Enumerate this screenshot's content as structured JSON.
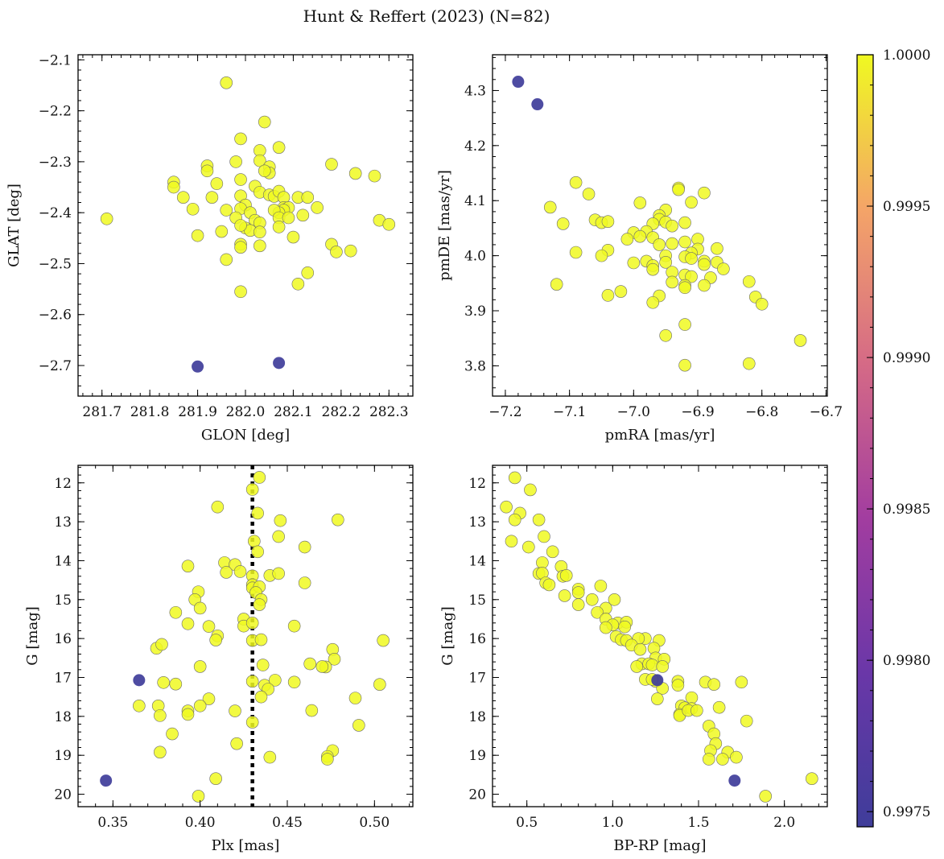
{
  "figure": {
    "suptitle": "Hunt & Reffert (2023) (N=82)"
  },
  "colors": {
    "member": "#f0f921",
    "outlier": "#3f3d9a"
  },
  "colorbar": {
    "min": 0.99745,
    "max": 1.0,
    "ticks": [
      0.9975,
      0.998,
      0.9985,
      0.999,
      0.9995,
      1.0
    ],
    "tick_labels": [
      "0.9975",
      "0.9980",
      "0.9985",
      "0.9990",
      "0.9995",
      "1.0000"
    ],
    "colormap": "plasma"
  },
  "chart_data": [
    {
      "id": "glon-glat",
      "type": "scatter",
      "xlabel": "GLON [deg]",
      "ylabel": "GLAT [deg]",
      "xlim": [
        281.65,
        282.35
      ],
      "ylim": [
        -2.76,
        -2.09
      ],
      "y_inverted": false,
      "xticks": [
        281.7,
        281.8,
        281.9,
        282.0,
        282.1,
        282.2,
        282.3
      ],
      "xtick_labels": [
        "281.7",
        "281.8",
        "281.9",
        "282.0",
        "282.1",
        "282.2",
        "282.3"
      ],
      "yticks": [
        -2.1,
        -2.2,
        -2.3,
        -2.4,
        -2.5,
        -2.6,
        -2.7
      ],
      "ytick_labels": [
        "−2.1",
        "−2.2",
        "−2.3",
        "−2.4",
        "−2.5",
        "−2.6",
        "−2.7"
      ],
      "members": [
        [
          281.96,
          -2.145
        ],
        [
          282.04,
          -2.222
        ],
        [
          281.99,
          -2.255
        ],
        [
          282.07,
          -2.272
        ],
        [
          282.03,
          -2.278
        ],
        [
          282.18,
          -2.305
        ],
        [
          282.23,
          -2.323
        ],
        [
          282.27,
          -2.328
        ],
        [
          281.92,
          -2.308
        ],
        [
          281.92,
          -2.318
        ],
        [
          281.98,
          -2.3
        ],
        [
          282.03,
          -2.298
        ],
        [
          282.05,
          -2.31
        ],
        [
          282.05,
          -2.322
        ],
        [
          282.04,
          -2.318
        ],
        [
          281.99,
          -2.335
        ],
        [
          281.85,
          -2.34
        ],
        [
          281.85,
          -2.35
        ],
        [
          281.87,
          -2.37
        ],
        [
          281.93,
          -2.37
        ],
        [
          281.94,
          -2.343
        ],
        [
          281.99,
          -2.367
        ],
        [
          282.02,
          -2.348
        ],
        [
          282.03,
          -2.36
        ],
        [
          282.05,
          -2.365
        ],
        [
          282.06,
          -2.368
        ],
        [
          282.07,
          -2.358
        ],
        [
          282.08,
          -2.37
        ],
        [
          282.11,
          -2.37
        ],
        [
          282.13,
          -2.37
        ],
        [
          282.0,
          -2.385
        ],
        [
          282.08,
          -2.39
        ],
        [
          282.09,
          -2.39
        ],
        [
          282.08,
          -2.395
        ],
        [
          282.07,
          -2.4
        ],
        [
          282.15,
          -2.39
        ],
        [
          282.06,
          -2.395
        ],
        [
          282.07,
          -2.41
        ],
        [
          282.12,
          -2.405
        ],
        [
          281.71,
          -2.412
        ],
        [
          281.89,
          -2.393
        ],
        [
          281.96,
          -2.395
        ],
        [
          281.99,
          -2.392
        ],
        [
          281.98,
          -2.41
        ],
        [
          282.01,
          -2.4
        ],
        [
          282.02,
          -2.415
        ],
        [
          282.03,
          -2.42
        ],
        [
          282.0,
          -2.43
        ],
        [
          282.01,
          -2.435
        ],
        [
          281.99,
          -2.425
        ],
        [
          282.09,
          -2.41
        ],
        [
          282.03,
          -2.438
        ],
        [
          282.07,
          -2.428
        ],
        [
          281.95,
          -2.437
        ],
        [
          281.9,
          -2.445
        ],
        [
          282.1,
          -2.448
        ],
        [
          281.99,
          -2.462
        ],
        [
          281.99,
          -2.468
        ],
        [
          282.03,
          -2.465
        ],
        [
          282.18,
          -2.462
        ],
        [
          282.19,
          -2.477
        ],
        [
          282.22,
          -2.475
        ],
        [
          282.28,
          -2.415
        ],
        [
          282.3,
          -2.423
        ],
        [
          281.96,
          -2.492
        ],
        [
          282.11,
          -2.54
        ],
        [
          282.13,
          -2.518
        ],
        [
          281.99,
          -2.555
        ]
      ],
      "outliers": [
        [
          281.9,
          -2.702
        ],
        [
          282.07,
          -2.695
        ]
      ]
    },
    {
      "id": "pmra-pmde",
      "type": "scatter",
      "xlabel": "pmRA [mas/yr]",
      "ylabel": "pmDE [mas/yr]",
      "xlim": [
        -7.22,
        -6.698
      ],
      "ylim": [
        3.745,
        4.365
      ],
      "y_inverted": false,
      "xticks": [
        -7.2,
        -7.1,
        -7.0,
        -6.9,
        -6.8,
        -6.7
      ],
      "xtick_labels": [
        "−7.2",
        "−7.1",
        "−7.0",
        "−6.9",
        "−6.8",
        "−6.7"
      ],
      "yticks": [
        3.8,
        3.9,
        4.0,
        4.1,
        4.2,
        4.3
      ],
      "ytick_labels": [
        "3.8",
        "3.9",
        "4.0",
        "4.1",
        "4.2",
        "4.3"
      ],
      "members": [
        [
          -7.09,
          4.133
        ],
        [
          -7.07,
          4.112
        ],
        [
          -6.89,
          4.114
        ],
        [
          -6.93,
          4.123
        ],
        [
          -6.93,
          4.12
        ],
        [
          -7.13,
          4.088
        ],
        [
          -6.99,
          4.096
        ],
        [
          -6.91,
          4.097
        ],
        [
          -6.95,
          4.083
        ],
        [
          -6.96,
          4.073
        ],
        [
          -6.96,
          4.066
        ],
        [
          -6.95,
          4.061
        ],
        [
          -7.11,
          4.058
        ],
        [
          -7.06,
          4.065
        ],
        [
          -7.05,
          4.06
        ],
        [
          -7.04,
          4.062
        ],
        [
          -6.92,
          4.06
        ],
        [
          -6.97,
          4.058
        ],
        [
          -6.94,
          4.054
        ],
        [
          -6.98,
          4.044
        ],
        [
          -7.0,
          4.042
        ],
        [
          -6.99,
          4.035
        ],
        [
          -6.97,
          4.033
        ],
        [
          -7.01,
          4.03
        ],
        [
          -6.9,
          4.03
        ],
        [
          -6.92,
          4.025
        ],
        [
          -6.94,
          4.022
        ],
        [
          -6.96,
          4.02
        ],
        [
          -6.87,
          4.013
        ],
        [
          -6.9,
          4.012
        ],
        [
          -6.91,
          4.005
        ],
        [
          -7.04,
          4.01
        ],
        [
          -7.09,
          4.006
        ],
        [
          -7.05,
          4.0
        ],
        [
          -6.95,
          4.0
        ],
        [
          -6.92,
          3.998
        ],
        [
          -6.91,
          3.995
        ],
        [
          -6.89,
          3.99
        ],
        [
          -6.87,
          3.988
        ],
        [
          -6.98,
          3.99
        ],
        [
          -6.95,
          3.988
        ],
        [
          -7.0,
          3.987
        ],
        [
          -6.89,
          3.984
        ],
        [
          -6.97,
          3.982
        ],
        [
          -6.97,
          3.975
        ],
        [
          -6.86,
          3.976
        ],
        [
          -6.94,
          3.97
        ],
        [
          -6.92,
          3.965
        ],
        [
          -6.91,
          3.962
        ],
        [
          -6.88,
          3.96
        ],
        [
          -6.82,
          3.953
        ],
        [
          -6.94,
          3.952
        ],
        [
          -6.92,
          3.946
        ],
        [
          -7.12,
          3.948
        ],
        [
          -7.02,
          3.935
        ],
        [
          -6.92,
          3.942
        ],
        [
          -7.04,
          3.928
        ],
        [
          -6.96,
          3.927
        ],
        [
          -6.97,
          3.915
        ],
        [
          -6.81,
          3.925
        ],
        [
          -6.8,
          3.912
        ],
        [
          -6.89,
          3.946
        ],
        [
          -6.92,
          3.875
        ],
        [
          -6.95,
          3.855
        ],
        [
          -6.74,
          3.846
        ],
        [
          -6.82,
          3.804
        ],
        [
          -6.92,
          3.801
        ]
      ],
      "outliers": [
        [
          -7.18,
          4.316
        ],
        [
          -7.15,
          4.275
        ]
      ]
    },
    {
      "id": "plx-g",
      "type": "scatter",
      "xlabel": "Plx [mas]",
      "ylabel": "G [mag]",
      "xlim": [
        0.33,
        0.522
      ],
      "ylim": [
        11.55,
        20.32
      ],
      "y_inverted": true,
      "xticks": [
        0.35,
        0.4,
        0.45,
        0.5
      ],
      "xtick_labels": [
        "0.35",
        "0.40",
        "0.45",
        "0.50"
      ],
      "yticks": [
        12,
        13,
        14,
        15,
        16,
        17,
        18,
        19,
        20
      ],
      "ytick_labels": [
        "12",
        "13",
        "14",
        "15",
        "16",
        "17",
        "18",
        "19",
        "20"
      ],
      "reference_x": 0.43,
      "members": [
        [
          0.434,
          11.86
        ],
        [
          0.43,
          12.17
        ],
        [
          0.41,
          12.62
        ],
        [
          0.433,
          12.78
        ],
        [
          0.479,
          12.95
        ],
        [
          0.446,
          12.97
        ],
        [
          0.431,
          13.5
        ],
        [
          0.445,
          13.38
        ],
        [
          0.46,
          13.65
        ],
        [
          0.433,
          13.77
        ],
        [
          0.414,
          14.05
        ],
        [
          0.42,
          14.1
        ],
        [
          0.393,
          14.14
        ],
        [
          0.44,
          14.38
        ],
        [
          0.445,
          14.33
        ],
        [
          0.423,
          14.28
        ],
        [
          0.43,
          14.39
        ],
        [
          0.415,
          14.3
        ],
        [
          0.46,
          14.57
        ],
        [
          0.43,
          14.62
        ],
        [
          0.43,
          14.7
        ],
        [
          0.434,
          14.67
        ],
        [
          0.432,
          14.82
        ],
        [
          0.399,
          14.8
        ],
        [
          0.397,
          15.0
        ],
        [
          0.435,
          15.0
        ],
        [
          0.434,
          15.13
        ],
        [
          0.4,
          15.22
        ],
        [
          0.425,
          15.5
        ],
        [
          0.386,
          15.33
        ],
        [
          0.393,
          15.62
        ],
        [
          0.454,
          15.68
        ],
        [
          0.405,
          15.69
        ],
        [
          0.425,
          15.68
        ],
        [
          0.43,
          15.6
        ],
        [
          0.41,
          15.93
        ],
        [
          0.409,
          16.04
        ],
        [
          0.43,
          16.05
        ],
        [
          0.435,
          16.03
        ],
        [
          0.375,
          16.25
        ],
        [
          0.378,
          16.15
        ],
        [
          0.505,
          16.05
        ],
        [
          0.476,
          16.28
        ],
        [
          0.477,
          16.53
        ],
        [
          0.436,
          16.68
        ],
        [
          0.463,
          16.65
        ],
        [
          0.4,
          16.72
        ],
        [
          0.472,
          16.73
        ],
        [
          0.47,
          16.72
        ],
        [
          0.43,
          17.1
        ],
        [
          0.437,
          17.2
        ],
        [
          0.443,
          17.07
        ],
        [
          0.454,
          17.12
        ],
        [
          0.379,
          17.13
        ],
        [
          0.386,
          17.17
        ],
        [
          0.503,
          17.18
        ],
        [
          0.439,
          17.3
        ],
        [
          0.435,
          17.5
        ],
        [
          0.405,
          17.55
        ],
        [
          0.376,
          17.73
        ],
        [
          0.365,
          17.73
        ],
        [
          0.4,
          17.73
        ],
        [
          0.377,
          17.98
        ],
        [
          0.393,
          17.86
        ],
        [
          0.393,
          17.95
        ],
        [
          0.42,
          17.86
        ],
        [
          0.464,
          17.85
        ],
        [
          0.489,
          17.53
        ],
        [
          0.43,
          18.15
        ],
        [
          0.491,
          18.23
        ],
        [
          0.384,
          18.45
        ],
        [
          0.421,
          18.7
        ],
        [
          0.377,
          18.92
        ],
        [
          0.476,
          18.88
        ],
        [
          0.44,
          19.05
        ],
        [
          0.473,
          19.03
        ],
        [
          0.473,
          19.1
        ],
        [
          0.409,
          19.6
        ],
        [
          0.399,
          20.05
        ]
      ],
      "outliers": [
        [
          0.365,
          17.07
        ],
        [
          0.346,
          19.65
        ]
      ]
    },
    {
      "id": "bprp-g",
      "type": "scatter",
      "xlabel": "BP-RP [mag]",
      "ylabel": "G [mag]",
      "xlim": [
        0.3,
        2.25
      ],
      "ylim": [
        11.55,
        20.32
      ],
      "y_inverted": true,
      "xticks": [
        0.5,
        1.0,
        1.5,
        2.0
      ],
      "xtick_labels": [
        "0.5",
        "1.0",
        "1.5",
        "2.0"
      ],
      "yticks": [
        12,
        13,
        14,
        15,
        16,
        17,
        18,
        19,
        20
      ],
      "ytick_labels": [
        "12",
        "13",
        "14",
        "15",
        "16",
        "17",
        "18",
        "19",
        "20"
      ],
      "members": [
        [
          0.43,
          11.87
        ],
        [
          0.52,
          12.18
        ],
        [
          0.38,
          12.62
        ],
        [
          0.46,
          12.78
        ],
        [
          0.43,
          12.95
        ],
        [
          0.57,
          12.95
        ],
        [
          0.41,
          13.5
        ],
        [
          0.6,
          13.38
        ],
        [
          0.51,
          13.65
        ],
        [
          0.65,
          13.77
        ],
        [
          0.59,
          14.05
        ],
        [
          0.7,
          14.15
        ],
        [
          0.57,
          14.33
        ],
        [
          0.59,
          14.32
        ],
        [
          0.71,
          14.4
        ],
        [
          0.73,
          14.38
        ],
        [
          0.61,
          14.57
        ],
        [
          0.63,
          14.62
        ],
        [
          0.93,
          14.65
        ],
        [
          0.8,
          14.73
        ],
        [
          0.8,
          14.82
        ],
        [
          0.72,
          14.9
        ],
        [
          0.88,
          15.0
        ],
        [
          1.01,
          15.0
        ],
        [
          0.8,
          15.13
        ],
        [
          0.96,
          15.22
        ],
        [
          0.91,
          15.33
        ],
        [
          0.96,
          15.5
        ],
        [
          1.03,
          15.6
        ],
        [
          1.08,
          15.58
        ],
        [
          1.0,
          15.65
        ],
        [
          1.07,
          15.7
        ],
        [
          0.96,
          15.72
        ],
        [
          1.02,
          15.95
        ],
        [
          1.05,
          16.03
        ],
        [
          1.08,
          16.05
        ],
        [
          1.19,
          16.0
        ],
        [
          1.15,
          16.0
        ],
        [
          1.27,
          16.05
        ],
        [
          1.11,
          16.17
        ],
        [
          1.24,
          16.25
        ],
        [
          1.16,
          16.28
        ],
        [
          1.25,
          16.5
        ],
        [
          1.3,
          16.53
        ],
        [
          1.17,
          16.65
        ],
        [
          1.21,
          16.65
        ],
        [
          1.23,
          16.68
        ],
        [
          1.29,
          16.72
        ],
        [
          1.14,
          16.72
        ],
        [
          1.19,
          17.05
        ],
        [
          1.25,
          17.1
        ],
        [
          1.38,
          17.1
        ],
        [
          1.54,
          17.12
        ],
        [
          1.59,
          17.18
        ],
        [
          1.75,
          17.12
        ],
        [
          1.38,
          17.2
        ],
        [
          1.29,
          17.28
        ],
        [
          1.26,
          17.55
        ],
        [
          1.46,
          17.52
        ],
        [
          1.4,
          17.73
        ],
        [
          1.62,
          17.77
        ],
        [
          1.42,
          17.78
        ],
        [
          1.46,
          17.8
        ],
        [
          1.39,
          17.95
        ],
        [
          1.39,
          17.98
        ],
        [
          1.44,
          17.85
        ],
        [
          1.49,
          17.85
        ],
        [
          1.78,
          18.12
        ],
        [
          1.56,
          18.25
        ],
        [
          1.59,
          18.45
        ],
        [
          1.6,
          18.7
        ],
        [
          1.57,
          18.88
        ],
        [
          1.67,
          18.92
        ],
        [
          1.56,
          19.1
        ],
        [
          1.64,
          19.1
        ],
        [
          1.72,
          19.05
        ],
        [
          2.16,
          19.6
        ],
        [
          1.89,
          20.05
        ],
        [
          1.23,
          17.05
        ]
      ],
      "outliers": [
        [
          1.26,
          17.07
        ],
        [
          1.71,
          19.65
        ]
      ]
    }
  ]
}
